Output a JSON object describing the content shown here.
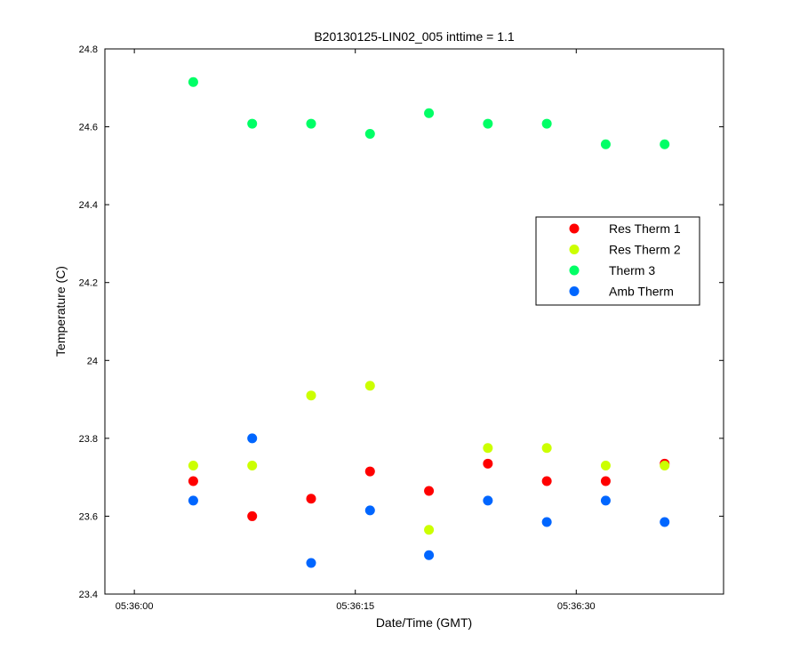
{
  "chart_data": {
    "type": "scatter",
    "title": "B20130125-LIN02_005 inttime = 1.1",
    "xlabel": "Date/Time (GMT)",
    "ylabel": "Temperature (C)",
    "x_axis_kind": "time",
    "xlim": [
      "05:35:58",
      "05:36:40"
    ],
    "ylim": [
      23.4,
      24.8
    ],
    "x_ticks": [
      "05:36:00",
      "05:36:15",
      "05:36:30"
    ],
    "y_ticks": [
      23.4,
      23.6,
      23.8,
      24,
      24.2,
      24.4,
      24.6,
      24.8
    ],
    "y_tick_labels": [
      "23.4",
      "23.6",
      "23.8",
      "24",
      "24.2",
      "24.4",
      "24.6",
      "24.8"
    ],
    "grid": false,
    "legend_position": "right",
    "x": [
      "05:36:04",
      "05:36:08",
      "05:36:12",
      "05:36:16",
      "05:36:20",
      "05:36:24",
      "05:36:28",
      "05:36:32",
      "05:36:36"
    ],
    "series": [
      {
        "name": "Res Therm 1",
        "color": "#ff0000",
        "values": [
          23.69,
          23.6,
          23.645,
          23.715,
          23.665,
          23.735,
          23.69,
          23.69,
          23.735
        ]
      },
      {
        "name": "Res Therm 2",
        "color": "#ccff00",
        "values": [
          23.73,
          23.73,
          23.91,
          23.935,
          23.565,
          23.775,
          23.775,
          23.73,
          23.73
        ]
      },
      {
        "name": "Therm 3",
        "color": "#00ff66",
        "values": [
          24.715,
          24.608,
          24.608,
          24.582,
          24.635,
          24.608,
          24.608,
          24.555,
          24.555
        ]
      },
      {
        "name": "Amb Therm",
        "color": "#0066ff",
        "values": [
          23.64,
          23.8,
          23.48,
          23.615,
          23.5,
          23.64,
          23.585,
          23.64,
          23.585
        ]
      }
    ]
  }
}
